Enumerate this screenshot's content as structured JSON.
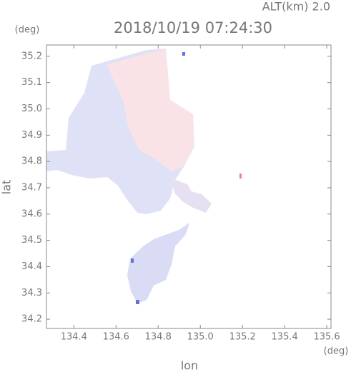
{
  "chart_data": {
    "type": "map",
    "title": "2018/10/19 07:24:30",
    "subtitle": "ALT(km) 2.0",
    "x_label": "lon",
    "y_label": "lat",
    "x_unit": "(deg)",
    "y_unit": "(deg)",
    "xlim": [
      134.27,
      135.62
    ],
    "ylim": [
      34.165,
      35.243
    ],
    "xticks": [
      134.4,
      134.6,
      134.8,
      {
        "value": 135,
        "label": "135.0"
      },
      135.2,
      135.4,
      135.6
    ],
    "yticks": [
      34.2,
      34.3,
      34.4,
      34.5,
      34.6,
      34.7,
      34.8,
      34.9,
      {
        "value": 35,
        "label": "35.0"
      },
      35.1,
      35.2
    ]
  }
}
